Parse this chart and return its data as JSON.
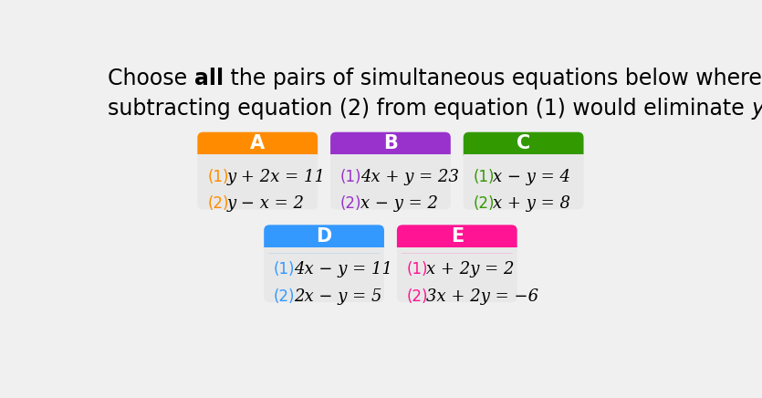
{
  "background_color": "#f0f0f0",
  "title_fontsize": 17,
  "cards": [
    {
      "label": "A",
      "header_color": "#FF8C00",
      "eq1_num": "(1)",
      "eq1_expr": "  y + 2x = 11",
      "eq2_num": "(2)",
      "eq2_expr": "   y − x = 2",
      "row": 0,
      "col": 0
    },
    {
      "label": "B",
      "header_color": "#9932CC",
      "eq1_num": "(1)",
      "eq1_expr": "  4x + y = 23",
      "eq2_num": "(2)",
      "eq2_expr": "  x − y = 2",
      "row": 0,
      "col": 1
    },
    {
      "label": "C",
      "header_color": "#339900",
      "eq1_num": "(1)",
      "eq1_expr": "  x − y = 4",
      "eq2_num": "(2)",
      "eq2_expr": "  x + y = 8",
      "row": 0,
      "col": 2
    },
    {
      "label": "D",
      "header_color": "#3399FF",
      "eq1_num": "(1)",
      "eq1_expr": "  4x − y = 11",
      "eq2_num": "(2)",
      "eq2_expr": "  2x − y = 5",
      "row": 1,
      "col": 0
    },
    {
      "label": "E",
      "header_color": "#FF1493",
      "eq1_num": "(1)",
      "eq1_expr": "  x + 2y = 2",
      "eq2_num": "(2)",
      "eq2_expr": "  3x + 2y = −6",
      "row": 1,
      "col": 1
    }
  ],
  "card_body_color": "#e8e8e8",
  "label_color": "#ffffff",
  "label_fontsize": 15,
  "eq_fontsize": 13
}
